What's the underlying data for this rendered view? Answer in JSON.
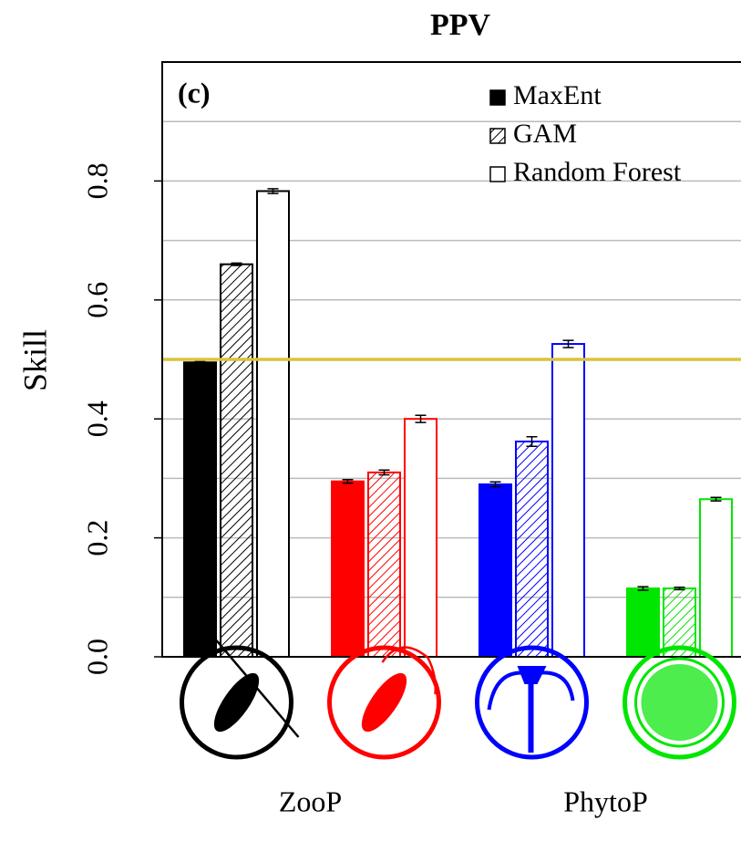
{
  "chart_data": {
    "type": "bar",
    "title": "PPV",
    "panel_label": "(c)",
    "y_label": "Skill",
    "categories": [
      null,
      null,
      null,
      null
    ],
    "category_groups": [
      {
        "name": "ZooP",
        "span": [
          0,
          1
        ]
      },
      {
        "name": "PhytoP",
        "span": [
          2,
          3
        ]
      }
    ],
    "group_colors": [
      "#000000",
      "#ff0000",
      "#0000ff",
      "#00e600"
    ],
    "series": [
      {
        "name": "MaxEnt",
        "style": "solid",
        "values": [
          0.495,
          0.295,
          0.29,
          0.115
        ],
        "errors": [
          0.002,
          0.003,
          0.004,
          0.003
        ]
      },
      {
        "name": "GAM",
        "style": "hatched",
        "values": [
          0.66,
          0.31,
          0.362,
          0.115
        ],
        "errors": [
          0.002,
          0.004,
          0.008,
          0.002
        ]
      },
      {
        "name": "Random Forest",
        "style": "outline",
        "values": [
          0.783,
          0.4,
          0.526,
          0.265
        ],
        "errors": [
          0.004,
          0.006,
          0.006,
          0.003
        ]
      }
    ],
    "ylim": [
      0,
      1.0
    ],
    "yticks": [
      {
        "value": 0,
        "label": "0.0"
      },
      0.2,
      0.4,
      0.6,
      0.8
    ],
    "minor_grid": [
      0.1,
      0.3,
      0.5,
      0.7,
      0.9
    ],
    "grid": true,
    "reference_line": {
      "value": 0.5,
      "color": "#d9c43c"
    },
    "legend": "top-right"
  }
}
